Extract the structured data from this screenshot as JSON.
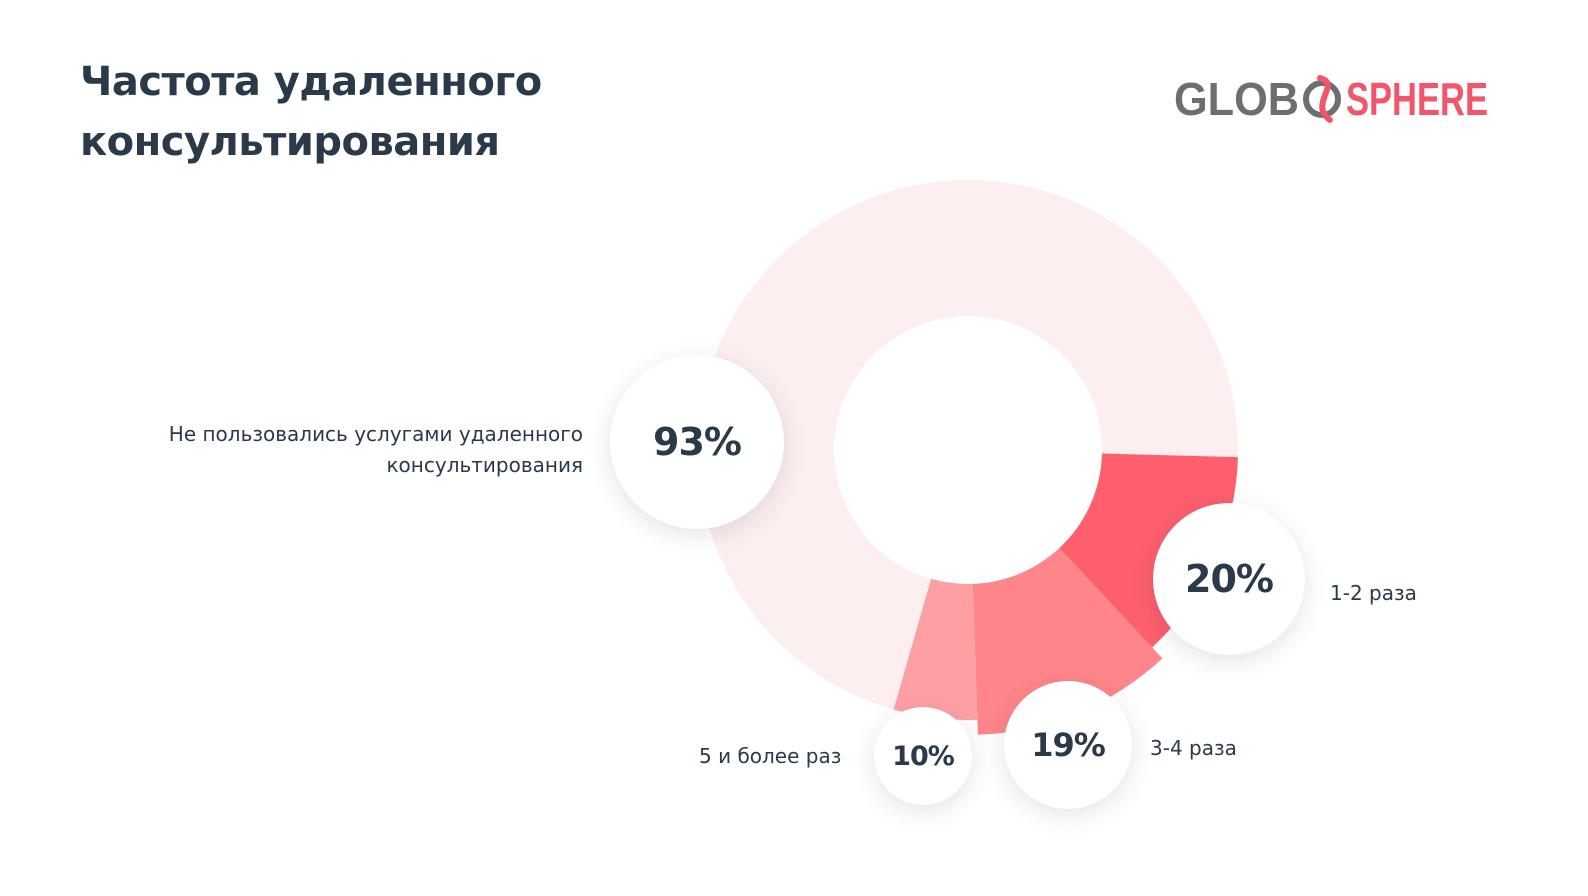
{
  "title": "Частота удаленного консультирования",
  "logo": {
    "left_text": "GLOB",
    "right_text": "SPHERE",
    "colors": {
      "grey": "#6d6e71",
      "pink": "#f2566a"
    }
  },
  "colors": {
    "ring_base": "#fdeeef",
    "slice_1_2": "#fd5f6d",
    "slice_3_4": "#fe8589",
    "slice_5_plus": "#fe9fa4",
    "text": "#2b3a4a"
  },
  "chart_data": {
    "type": "pie",
    "title": "Частота удаленного консультирования",
    "slices": [
      {
        "label": "Не пользовались услугами удаленного консультирования",
        "value": 93,
        "value_label": "93%"
      },
      {
        "label": "1-2 раза",
        "value": 20,
        "value_label": "20%"
      },
      {
        "label": "3-4 раза",
        "value": 19,
        "value_label": "19%"
      },
      {
        "label": "5 и более раз",
        "value": 10,
        "value_label": "10%"
      }
    ]
  }
}
